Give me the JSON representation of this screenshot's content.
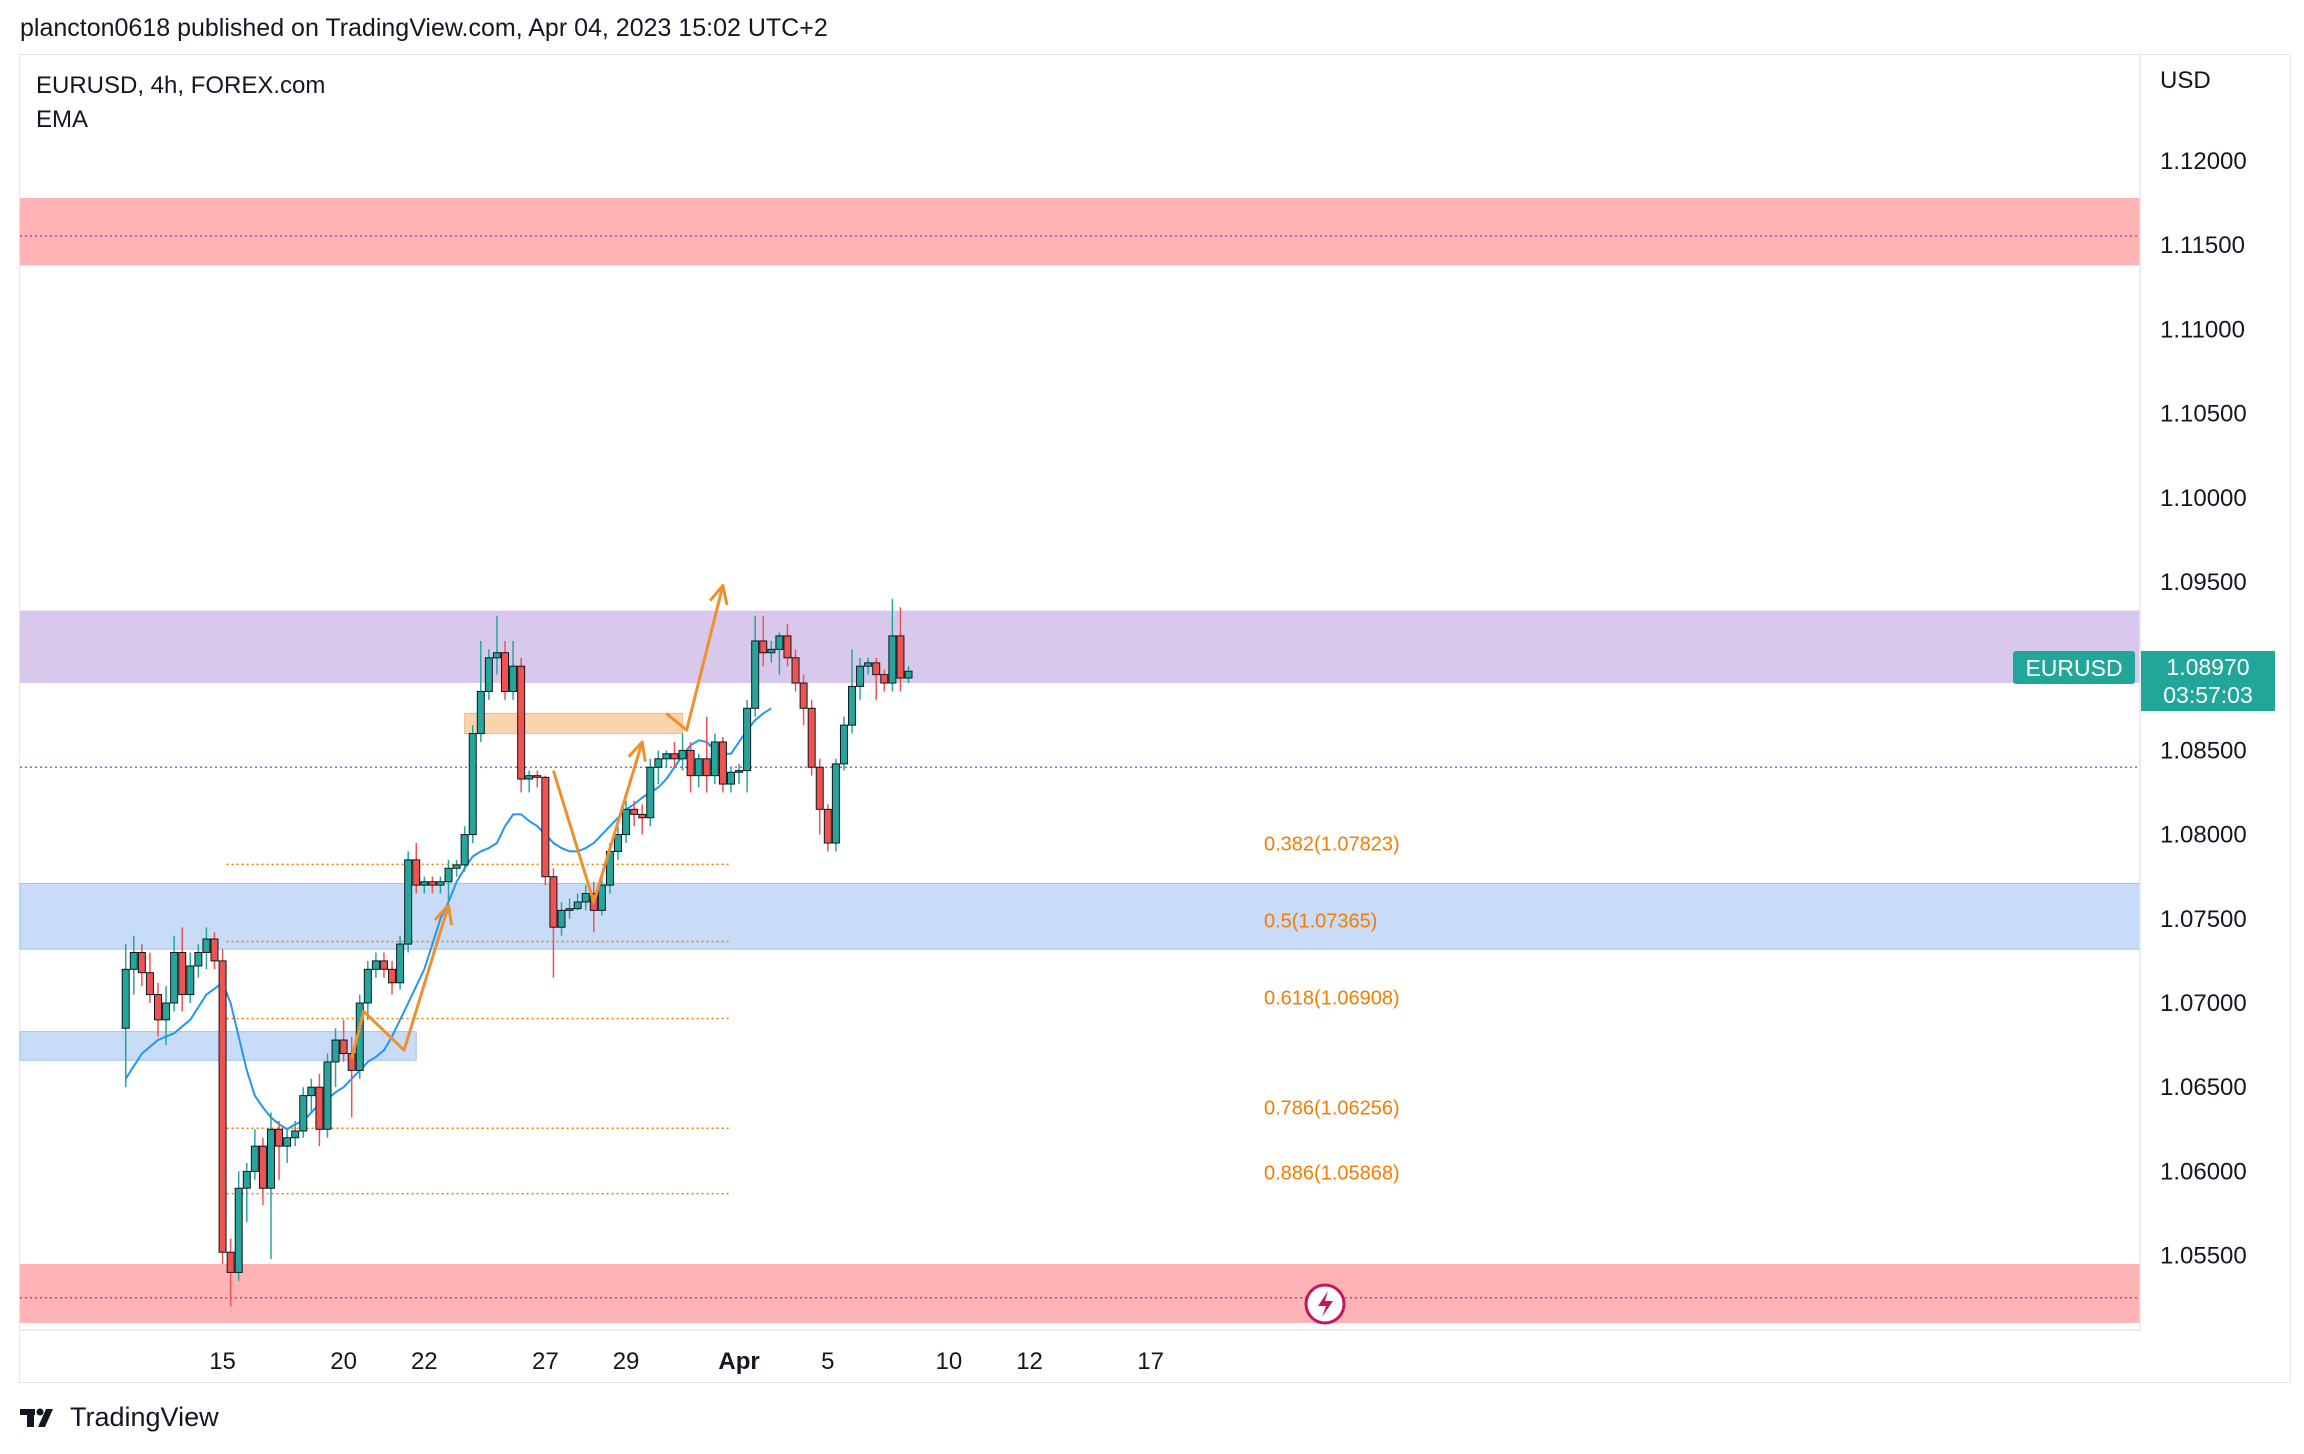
{
  "header": {
    "published_text": "plancton0618 published on TradingView.com, Apr 04, 2023 15:02 UTC+2"
  },
  "legend": {
    "symbol_line": "EURUSD, 4h, FOREX.com",
    "indicator": "EMA"
  },
  "price_scale": {
    "currency": "USD"
  },
  "price_badge": {
    "symbol": "EURUSD",
    "price": "1.08970",
    "countdown": "03:57:03"
  },
  "footer": {
    "brand": "TradingView"
  },
  "colors": {
    "up": "#26a69a",
    "down": "#ef5350",
    "ema": "#2196f3",
    "fib": "#f57c00",
    "arrow": "#ef8f2d",
    "supply_zone": "#ffb3b5",
    "purple_zone": "#d8c8ec",
    "blue_zone": "#c8dcf7",
    "order_block": "#fbd3ad",
    "badge": "#22a69a"
  },
  "chart_data": {
    "type": "candlestick",
    "symbol": "EURUSD",
    "timeframe": "4h",
    "ylim": [
      1.051,
      1.1285
    ],
    "y_ticks": [
      "1.12000",
      "1.11500",
      "1.11000",
      "1.10500",
      "1.10000",
      "1.09500",
      "1.09000",
      "1.08500",
      "1.08000",
      "1.07500",
      "1.07000",
      "1.06500",
      "1.06000",
      "1.05500"
    ],
    "x_ticks": [
      {
        "label": "15",
        "index": 8,
        "bold": false
      },
      {
        "label": "20",
        "index": 23,
        "bold": false
      },
      {
        "label": "22",
        "index": 33,
        "bold": false
      },
      {
        "label": "27",
        "index": 48,
        "bold": false
      },
      {
        "label": "29",
        "index": 58,
        "bold": false
      },
      {
        "label": "Apr",
        "index": 72,
        "bold": true
      },
      {
        "label": "5",
        "index": 83,
        "bold": false
      },
      {
        "label": "10",
        "index": 98,
        "bold": false
      },
      {
        "label": "12",
        "index": 108,
        "bold": false
      },
      {
        "label": "17",
        "index": 123,
        "bold": false
      }
    ],
    "candles": [
      [
        1.0685,
        1.0735,
        1.065,
        1.072
      ],
      [
        1.072,
        1.074,
        1.0705,
        1.073
      ],
      [
        1.073,
        1.0735,
        1.071,
        1.0718
      ],
      [
        1.0718,
        1.073,
        1.07,
        1.0705
      ],
      [
        1.0705,
        1.0712,
        1.068,
        1.069
      ],
      [
        1.069,
        1.071,
        1.0675,
        1.07
      ],
      [
        1.07,
        1.074,
        1.0695,
        1.073
      ],
      [
        1.073,
        1.0745,
        1.0695,
        1.0705
      ],
      [
        1.0705,
        1.073,
        1.07,
        1.0722
      ],
      [
        1.0722,
        1.0735,
        1.0715,
        1.073
      ],
      [
        1.073,
        1.0745,
        1.072,
        1.0738
      ],
      [
        1.0738,
        1.0742,
        1.072,
        1.0725
      ],
      [
        1.0725,
        1.0732,
        1.0545,
        1.0552
      ],
      [
        1.0552,
        1.056,
        1.052,
        1.054
      ],
      [
        1.054,
        1.06,
        1.0535,
        1.059
      ],
      [
        1.059,
        1.0605,
        1.057,
        1.06
      ],
      [
        1.06,
        1.0625,
        1.0595,
        1.0615
      ],
      [
        1.0615,
        1.062,
        1.058,
        1.059
      ],
      [
        1.059,
        1.0635,
        1.0548,
        1.0625
      ],
      [
        1.0625,
        1.063,
        1.0595,
        1.0615
      ],
      [
        1.0615,
        1.0625,
        1.0605,
        1.062
      ],
      [
        1.062,
        1.063,
        1.0615,
        1.0624
      ],
      [
        1.0624,
        1.065,
        1.062,
        1.0645
      ],
      [
        1.0645,
        1.0655,
        1.0635,
        1.065
      ],
      [
        1.065,
        1.0658,
        1.0615,
        1.0625
      ],
      [
        1.0625,
        1.067,
        1.062,
        1.0665
      ],
      [
        1.0665,
        1.0685,
        1.065,
        1.0678
      ],
      [
        1.0678,
        1.069,
        1.0665,
        1.067
      ],
      [
        1.067,
        1.068,
        1.0632,
        1.066
      ],
      [
        1.066,
        1.0705,
        1.0655,
        1.07
      ],
      [
        1.07,
        1.0725,
        1.069,
        1.072
      ],
      [
        1.072,
        1.073,
        1.0715,
        1.0725
      ],
      [
        1.0725,
        1.073,
        1.0715,
        1.072
      ],
      [
        1.072,
        1.0725,
        1.0705,
        1.0712
      ],
      [
        1.0712,
        1.074,
        1.0708,
        1.0735
      ],
      [
        1.0735,
        1.079,
        1.073,
        1.0785
      ],
      [
        1.0785,
        1.0795,
        1.0765,
        1.077
      ],
      [
        1.077,
        1.0775,
        1.0765,
        1.0772
      ],
      [
        1.0772,
        1.0775,
        1.0765,
        1.077
      ],
      [
        1.077,
        1.0775,
        1.0765,
        1.0772
      ],
      [
        1.0772,
        1.0785,
        1.076,
        1.078
      ],
      [
        1.078,
        1.0785,
        1.0775,
        1.0782
      ],
      [
        1.0782,
        1.0805,
        1.0778,
        1.08
      ],
      [
        1.08,
        1.0865,
        1.0795,
        1.086
      ],
      [
        1.086,
        1.0915,
        1.0855,
        1.0885
      ],
      [
        1.0885,
        1.091,
        1.088,
        1.0905
      ],
      [
        1.0905,
        1.093,
        1.0895,
        1.0908
      ],
      [
        1.0908,
        1.0915,
        1.088,
        1.0885
      ],
      [
        1.0885,
        1.0915,
        1.088,
        1.09
      ],
      [
        1.09,
        1.0905,
        1.0825,
        1.0833
      ],
      [
        1.0833,
        1.0838,
        1.0825,
        1.0835
      ],
      [
        1.0835,
        1.0838,
        1.0828,
        1.0834
      ],
      [
        1.0834,
        1.0835,
        1.077,
        1.0775
      ],
      [
        1.0775,
        1.078,
        1.0715,
        1.0745
      ],
      [
        1.0745,
        1.076,
        1.074,
        1.0755
      ],
      [
        1.0755,
        1.0762,
        1.075,
        1.0756
      ],
      [
        1.0756,
        1.0765,
        1.0755,
        1.076
      ],
      [
        1.076,
        1.077,
        1.0755,
        1.0765
      ],
      [
        1.0765,
        1.0772,
        1.0742,
        1.0755
      ],
      [
        1.0755,
        1.0775,
        1.0752,
        1.077
      ],
      [
        1.077,
        1.0795,
        1.0765,
        1.079
      ],
      [
        1.079,
        1.0805,
        1.0785,
        1.08
      ],
      [
        1.08,
        1.082,
        1.0795,
        1.0815
      ],
      [
        1.0815,
        1.082,
        1.0805,
        1.0812
      ],
      [
        1.0812,
        1.0818,
        1.08,
        1.081
      ],
      [
        1.081,
        1.0845,
        1.0805,
        1.084
      ],
      [
        1.084,
        1.085,
        1.083,
        1.0845
      ],
      [
        1.0845,
        1.085,
        1.084,
        1.0848
      ],
      [
        1.0848,
        1.0855,
        1.084,
        1.0845
      ],
      [
        1.0845,
        1.086,
        1.0838,
        1.085
      ],
      [
        1.085,
        1.0855,
        1.0825,
        1.0835
      ],
      [
        1.0835,
        1.0848,
        1.0828,
        1.0845
      ],
      [
        1.0845,
        1.087,
        1.0825,
        1.0835
      ],
      [
        1.0835,
        1.086,
        1.083,
        1.0855
      ],
      [
        1.0855,
        1.0858,
        1.0825,
        1.083
      ],
      [
        1.083,
        1.084,
        1.0825,
        1.0837
      ],
      [
        1.0837,
        1.0842,
        1.083,
        1.0838
      ],
      [
        1.0838,
        1.088,
        1.0825,
        1.0875
      ],
      [
        1.0875,
        1.093,
        1.087,
        1.0915
      ],
      [
        1.0915,
        1.093,
        1.09,
        1.0908
      ],
      [
        1.0908,
        1.0915,
        1.0902,
        1.091
      ],
      [
        1.091,
        1.092,
        1.0895,
        1.0918
      ],
      [
        1.0918,
        1.0925,
        1.09,
        1.0905
      ],
      [
        1.0905,
        1.091,
        1.0885,
        1.089
      ],
      [
        1.089,
        1.0895,
        1.0865,
        1.0875
      ],
      [
        1.0875,
        1.088,
        1.0835,
        1.084
      ],
      [
        1.084,
        1.0845,
        1.08,
        1.0815
      ],
      [
        1.0815,
        1.0818,
        1.079,
        1.0795
      ],
      [
        1.0795,
        1.0845,
        1.079,
        1.0842
      ],
      [
        1.0842,
        1.087,
        1.0838,
        1.0865
      ],
      [
        1.0865,
        1.091,
        1.086,
        1.0888
      ],
      [
        1.0888,
        1.0905,
        1.088,
        1.09
      ],
      [
        1.09,
        1.0905,
        1.0895,
        1.0902
      ],
      [
        1.0902,
        1.0905,
        1.088,
        1.0895
      ],
      [
        1.0895,
        1.0898,
        1.0885,
        1.089
      ],
      [
        1.089,
        1.094,
        1.0885,
        1.0918
      ],
      [
        1.0918,
        1.0935,
        1.0885,
        1.0893
      ],
      [
        1.0893,
        1.09,
        1.089,
        1.0897
      ]
    ],
    "candles_format": "[open, high, low, close] per 4h bar; candles_start_index = -4",
    "candles_start_index": -4,
    "ema": [
      [
        -4,
        1.0655
      ],
      [
        -2,
        1.067
      ],
      [
        0,
        1.0678
      ],
      [
        2,
        1.0682
      ],
      [
        4,
        1.069
      ],
      [
        6,
        1.0705
      ],
      [
        8,
        1.0712
      ],
      [
        9,
        1.07
      ],
      [
        10,
        1.068
      ],
      [
        11,
        1.066
      ],
      [
        12,
        1.0645
      ],
      [
        13,
        1.0638
      ],
      [
        14,
        1.0632
      ],
      [
        15,
        1.0628
      ],
      [
        16,
        1.0625
      ],
      [
        17,
        1.0628
      ],
      [
        18,
        1.063
      ],
      [
        19,
        1.0635
      ],
      [
        20,
        1.064
      ],
      [
        21,
        1.0643
      ],
      [
        22,
        1.0647
      ],
      [
        23,
        1.065
      ],
      [
        24,
        1.0655
      ],
      [
        25,
        1.066
      ],
      [
        26,
        1.0665
      ],
      [
        27,
        1.0668
      ],
      [
        28,
        1.0672
      ],
      [
        29,
        1.068
      ],
      [
        30,
        1.069
      ],
      [
        31,
        1.07
      ],
      [
        32,
        1.071
      ],
      [
        33,
        1.072
      ],
      [
        34,
        1.0735
      ],
      [
        35,
        1.075
      ],
      [
        36,
        1.076
      ],
      [
        37,
        1.0772
      ],
      [
        38,
        1.078
      ],
      [
        39,
        1.0787
      ],
      [
        40,
        1.079
      ],
      [
        41,
        1.0792
      ],
      [
        42,
        1.0795
      ],
      [
        43,
        1.0805
      ],
      [
        44,
        1.0812
      ],
      [
        45,
        1.0812
      ],
      [
        46,
        1.0808
      ],
      [
        47,
        1.0805
      ],
      [
        48,
        1.08
      ],
      [
        49,
        1.0795
      ],
      [
        50,
        1.0792
      ],
      [
        51,
        1.079
      ],
      [
        52,
        1.079
      ],
      [
        53,
        1.0792
      ],
      [
        54,
        1.0795
      ],
      [
        55,
        1.08
      ],
      [
        56,
        1.0805
      ],
      [
        57,
        1.081
      ],
      [
        58,
        1.0815
      ],
      [
        59,
        1.0818
      ],
      [
        60,
        1.0822
      ],
      [
        61,
        1.0825
      ],
      [
        62,
        1.0828
      ],
      [
        63,
        1.0833
      ],
      [
        64,
        1.084
      ],
      [
        65,
        1.0847
      ],
      [
        66,
        1.0853
      ],
      [
        67,
        1.0856
      ],
      [
        68,
        1.0855
      ],
      [
        69,
        1.085
      ],
      [
        70,
        1.0848
      ],
      [
        71,
        1.0848
      ],
      [
        72,
        1.0855
      ],
      [
        73,
        1.0862
      ],
      [
        74,
        1.0868
      ],
      [
        75,
        1.0872
      ],
      [
        76,
        1.0875
      ]
    ],
    "zones": [
      {
        "name": "supply-zone-top",
        "type": "rectangle",
        "y_low": 1.1138,
        "y_high": 1.1178,
        "x_start": "left-edge",
        "x_end": "right-edge"
      },
      {
        "name": "purple-resistance-zone",
        "type": "rectangle",
        "y_low": 1.089,
        "y_high": 1.0933,
        "x_start": "left-edge",
        "x_end": "right-edge"
      },
      {
        "name": "order-block-zone",
        "type": "rectangle",
        "y_low": 1.086,
        "y_high": 1.0872,
        "x_start": 38,
        "x_end": 65
      },
      {
        "name": "blue-support-zone",
        "type": "rectangle",
        "y_low": 1.0732,
        "y_high": 1.0771,
        "x_start": "left-edge",
        "x_end": "right-edge"
      },
      {
        "name": "blue-demand-zone-small",
        "type": "rectangle",
        "y_low": 1.0666,
        "y_high": 1.0683,
        "x_start": "left-edge",
        "x_end": 32
      },
      {
        "name": "demand-zone-bottom",
        "type": "rectangle",
        "y_low": 1.051,
        "y_high": 1.0545,
        "x_start": "left-edge",
        "x_end": "right-edge"
      }
    ],
    "horizontal_lines": [
      {
        "name": "resistance-dotted-line",
        "y": 1.11555,
        "style": "dotted"
      },
      {
        "name": "pivot-dotted-line",
        "y": 1.084,
        "style": "dotted"
      },
      {
        "name": "demand-dotted-line",
        "y": 1.0525,
        "style": "dotted"
      }
    ],
    "fibonacci": {
      "x_start": 8.5,
      "x_end": 71,
      "levels": [
        {
          "label": "0.382(1.07823)",
          "value": 1.07823
        },
        {
          "label": "0.5(1.07365)",
          "value": 1.07365
        },
        {
          "label": "0.618(1.06908)",
          "value": 1.06908
        },
        {
          "label": "0.786(1.06256)",
          "value": 1.06256
        },
        {
          "label": "0.886(1.05868)",
          "value": 1.05868
        }
      ]
    },
    "arrow_paths": [
      {
        "name": "projection-arrow-1",
        "points": [
          [
            24,
            1.0667
          ],
          [
            25.5,
            1.0695
          ],
          [
            30.5,
            1.0672
          ],
          [
            36,
            1.0758
          ]
        ],
        "arrowhead": true
      },
      {
        "name": "projection-arrow-2",
        "points": [
          [
            49,
            1.0838
          ],
          [
            54,
            1.076
          ],
          [
            60,
            1.0855
          ]
        ],
        "arrowhead": true
      },
      {
        "name": "projection-arrow-3",
        "points": [
          [
            63,
            1.0872
          ],
          [
            65.5,
            1.0862
          ],
          [
            70,
            1.0948
          ]
        ],
        "arrowhead": true
      }
    ]
  }
}
